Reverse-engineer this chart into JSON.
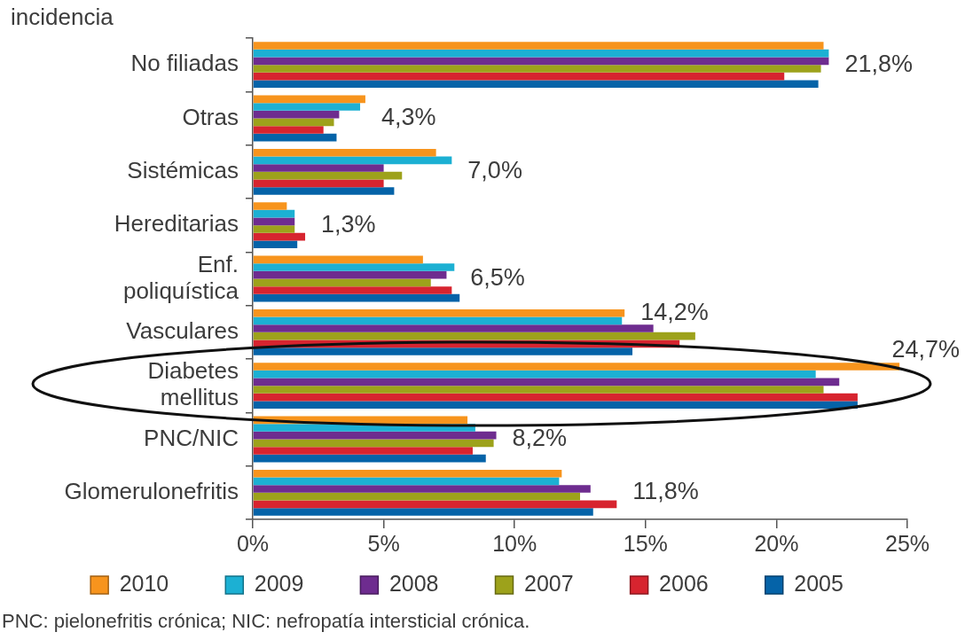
{
  "chart_data": {
    "type": "bar",
    "orientation": "horizontal",
    "title": "incidencia",
    "categories": [
      "No filiadas",
      "Otras",
      "Sistémicas",
      "Hereditarias",
      "Enf. poliquística",
      "Vasculares",
      "Diabetes mellitus",
      "PNC/NIC",
      "Glomerulonefritis"
    ],
    "series": [
      {
        "name": "2010",
        "color": "#f7941d",
        "values": [
          21.8,
          4.3,
          7.0,
          1.3,
          6.5,
          14.2,
          24.7,
          8.2,
          11.8
        ],
        "value_labels": [
          "21,8%",
          "4,3%",
          "7,0%",
          "1,3%",
          "6,5%",
          "14,2%",
          "24,7%",
          "8,2%",
          "11,8%"
        ]
      },
      {
        "name": "2009",
        "color": "#1cb0d3",
        "values": [
          22.0,
          4.1,
          7.6,
          1.6,
          7.7,
          14.1,
          21.5,
          8.5,
          11.7
        ]
      },
      {
        "name": "2008",
        "color": "#6e2c8f",
        "values": [
          22.0,
          3.3,
          5.0,
          1.6,
          7.4,
          15.3,
          22.4,
          9.3,
          12.9
        ]
      },
      {
        "name": "2007",
        "color": "#9da21b",
        "values": [
          21.7,
          3.1,
          5.7,
          1.6,
          6.8,
          16.9,
          21.8,
          9.2,
          12.5
        ]
      },
      {
        "name": "2006",
        "color": "#d7242f",
        "values": [
          20.3,
          2.7,
          5.0,
          2.0,
          7.6,
          16.3,
          23.1,
          8.4,
          13.9
        ]
      },
      {
        "name": "2005",
        "color": "#0563a8",
        "values": [
          21.6,
          3.2,
          5.4,
          1.7,
          7.9,
          14.5,
          23.1,
          8.9,
          13.0
        ]
      }
    ],
    "xlim": [
      0,
      25
    ],
    "xticks": [
      {
        "value": 0,
        "label": "0%"
      },
      {
        "value": 5,
        "label": "5%"
      },
      {
        "value": 10,
        "label": "10%"
      },
      {
        "value": 15,
        "label": "15%"
      },
      {
        "value": 20,
        "label": "20%"
      },
      {
        "value": 25,
        "label": "25%"
      }
    ],
    "legend": "bottom",
    "annotations": [
      "PNC: pielonefritis crónica; NIC: nefropatía intersticial crónica."
    ]
  }
}
